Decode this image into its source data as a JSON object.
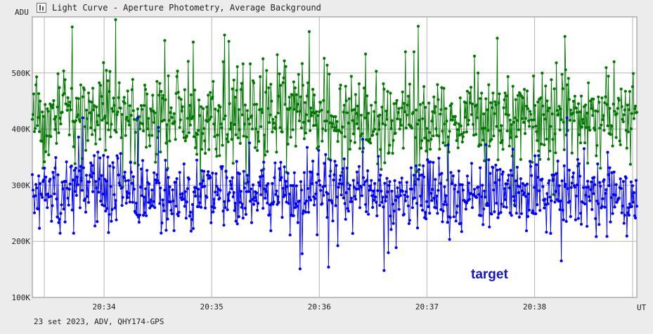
{
  "window": {
    "title": "Light Curve - Aperture Photometry, Average Background",
    "icon": "chart-icon"
  },
  "footer": {
    "info": "23 set 2023, ADV, QHY174-GPS"
  },
  "colors": {
    "plot_background": "#ffffff",
    "grid": "#b4b4b4",
    "target": "#0000ff",
    "comparison": "#007800"
  },
  "chart_data": {
    "type": "line",
    "xlabel": "UT",
    "ylabel": "ADU",
    "x_start": "20:33:20",
    "x_end": "20:38:57",
    "xlim": [
      "20:33:20",
      "20:38:57"
    ],
    "ylim": [
      100000,
      600000
    ],
    "y_ticks": [
      {
        "value": 100000,
        "label": "100K"
      },
      {
        "value": 200000,
        "label": "200K"
      },
      {
        "value": 300000,
        "label": "300K"
      },
      {
        "value": 400000,
        "label": "400K"
      },
      {
        "value": 500000,
        "label": "500K"
      }
    ],
    "x_ticks": [
      {
        "value": "20:34:00",
        "label": "20:34"
      },
      {
        "value": "20:35:00",
        "label": "20:35"
      },
      {
        "value": "20:36:00",
        "label": "20:36"
      },
      {
        "value": "20:37:00",
        "label": "20:37"
      },
      {
        "value": "20:38:00",
        "label": "20:38"
      }
    ],
    "grid": true,
    "series": [
      {
        "label": "",
        "color": "#007800",
        "mean": 420000,
        "noise": 40000,
        "min": 265000,
        "max": 595000,
        "points": 850
      },
      {
        "label": "target",
        "color": "#0000ff",
        "mean": 285000,
        "noise": 30000,
        "min": 148000,
        "max": 420000,
        "points": 850
      }
    ],
    "annotation": "target"
  }
}
